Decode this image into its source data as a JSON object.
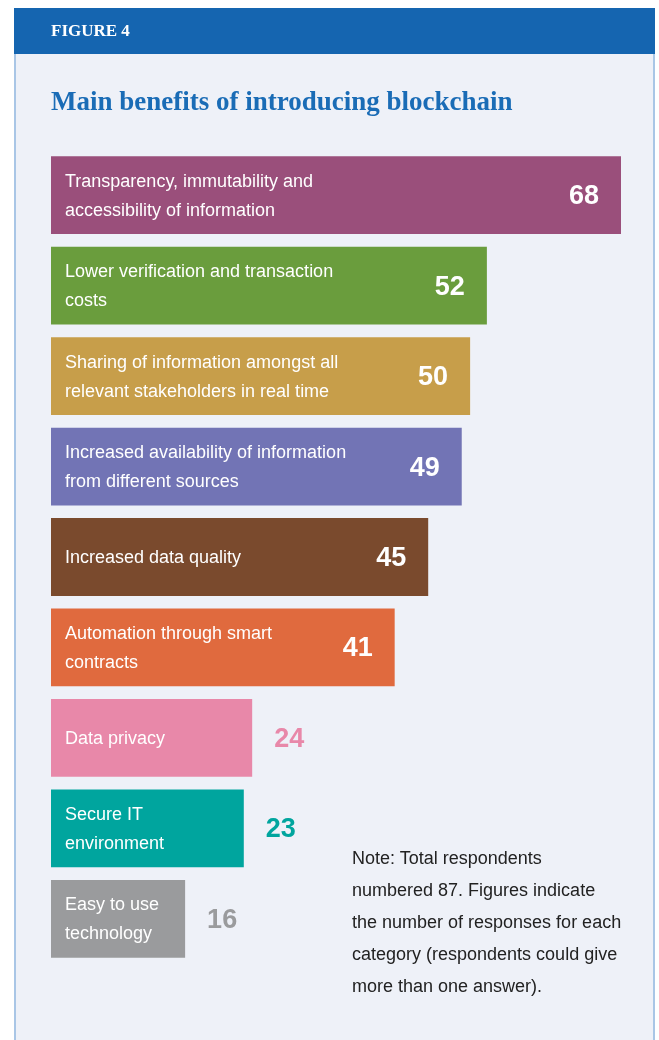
{
  "chart_data": {
    "type": "bar",
    "orientation": "horizontal",
    "title": "Main benefits of introducing blockchain",
    "categories": [
      "Transparency, immutability and accessibility of information",
      "Lower verification and transaction costs",
      "Sharing of information amongst all relevant stakeholders in real time",
      "Increased availability of information from different sources",
      "Increased data quality",
      "Automation through smart contracts",
      "Data privacy",
      "Secure IT environment",
      "Easy to use technology"
    ],
    "values": [
      68,
      52,
      50,
      49,
      45,
      41,
      24,
      23,
      16
    ],
    "colors": [
      "#9a4f7b",
      "#6a9d3d",
      "#c79e4a",
      "#7274b5",
      "#7a4a2d",
      "#e06a3e",
      "#e888a9",
      "#00a59e",
      "#9a9b9d"
    ],
    "data_labels": true,
    "annotations": [
      "FIGURE 4",
      "Note: Total respondents numbered 87. Figures indicate the number of responses for each category (respondents could give more than one answer)."
    ]
  }
}
